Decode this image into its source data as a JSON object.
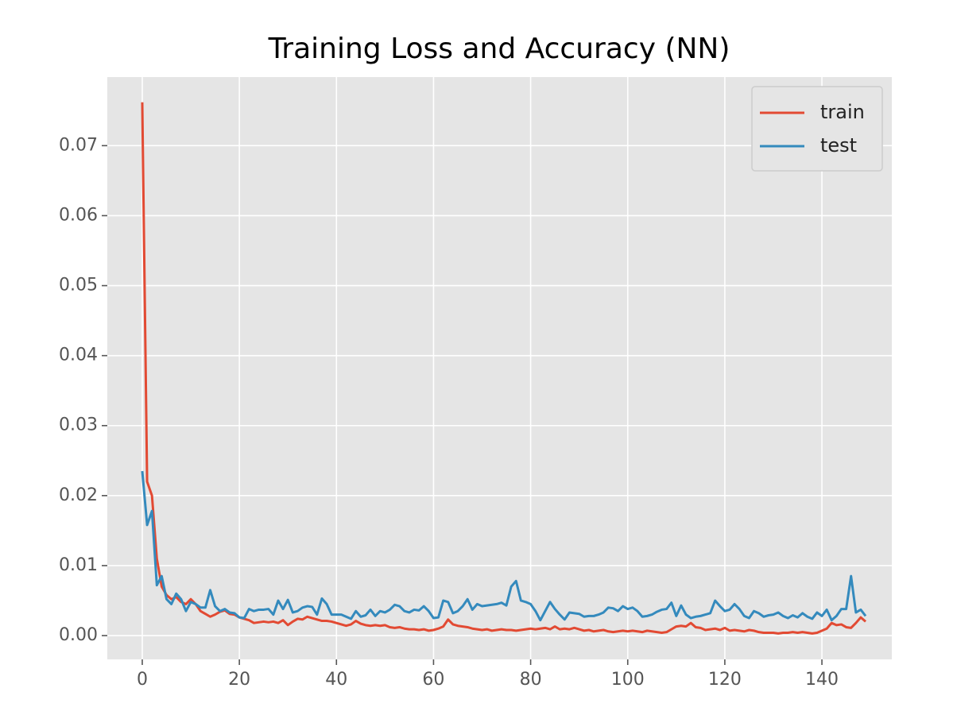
{
  "chart_data": {
    "type": "line",
    "title": "Training Loss and Accuracy (NN)",
    "x": [
      0,
      1,
      2,
      3,
      4,
      5,
      6,
      7,
      8,
      9,
      10,
      11,
      12,
      13,
      14,
      15,
      16,
      17,
      18,
      19,
      20,
      21,
      22,
      23,
      24,
      25,
      26,
      27,
      28,
      29,
      30,
      31,
      32,
      33,
      34,
      35,
      36,
      37,
      38,
      39,
      40,
      41,
      42,
      43,
      44,
      45,
      46,
      47,
      48,
      49,
      50,
      51,
      52,
      53,
      54,
      55,
      56,
      57,
      58,
      59,
      60,
      61,
      62,
      63,
      64,
      65,
      66,
      67,
      68,
      69,
      70,
      71,
      72,
      73,
      74,
      75,
      76,
      77,
      78,
      79,
      80,
      81,
      82,
      83,
      84,
      85,
      86,
      87,
      88,
      89,
      90,
      91,
      92,
      93,
      94,
      95,
      96,
      97,
      98,
      99,
      100,
      101,
      102,
      103,
      104,
      105,
      106,
      107,
      108,
      109,
      110,
      111,
      112,
      113,
      114,
      115,
      116,
      117,
      118,
      119,
      120,
      121,
      122,
      123,
      124,
      125,
      126,
      127,
      128,
      129,
      130,
      131,
      132,
      133,
      134,
      135,
      136,
      137,
      138,
      139,
      140,
      141,
      142,
      143,
      144,
      145,
      146,
      147,
      148,
      149
    ],
    "series": [
      {
        "name": "train",
        "color": "#E24A33",
        "values": [
          0.0762,
          0.022,
          0.02,
          0.011,
          0.007,
          0.0058,
          0.0052,
          0.0055,
          0.0048,
          0.0045,
          0.0052,
          0.0045,
          0.0035,
          0.0031,
          0.0027,
          0.003,
          0.0034,
          0.0036,
          0.0031,
          0.003,
          0.0026,
          0.0024,
          0.0022,
          0.0018,
          0.0019,
          0.002,
          0.0019,
          0.002,
          0.0018,
          0.0022,
          0.0015,
          0.002,
          0.0024,
          0.0023,
          0.0027,
          0.0025,
          0.0023,
          0.0021,
          0.0021,
          0.002,
          0.0018,
          0.0016,
          0.0014,
          0.0016,
          0.0021,
          0.0017,
          0.0015,
          0.0014,
          0.0015,
          0.0014,
          0.0015,
          0.0012,
          0.0011,
          0.0012,
          0.001,
          0.0009,
          0.0009,
          0.0008,
          0.0009,
          0.0007,
          0.0008,
          0.001,
          0.0013,
          0.0023,
          0.0016,
          0.0014,
          0.0013,
          0.0012,
          0.001,
          0.0009,
          0.0008,
          0.0009,
          0.0007,
          0.0008,
          0.0009,
          0.0008,
          0.0008,
          0.0007,
          0.0008,
          0.0009,
          0.001,
          0.0009,
          0.001,
          0.0011,
          0.0009,
          0.0013,
          0.0009,
          0.001,
          0.0009,
          0.0011,
          0.0009,
          0.0007,
          0.0008,
          0.0006,
          0.0007,
          0.0008,
          0.0006,
          0.0005,
          0.0006,
          0.0007,
          0.0006,
          0.0007,
          0.0006,
          0.0005,
          0.0007,
          0.0006,
          0.0005,
          0.0004,
          0.0005,
          0.0009,
          0.0013,
          0.0014,
          0.0013,
          0.0018,
          0.0012,
          0.0011,
          0.0008,
          0.0009,
          0.001,
          0.0008,
          0.0011,
          0.0007,
          0.0008,
          0.0007,
          0.0006,
          0.0008,
          0.0007,
          0.0005,
          0.0004,
          0.0004,
          0.0004,
          0.0003,
          0.0004,
          0.0004,
          0.0005,
          0.0004,
          0.0005,
          0.0004,
          0.0003,
          0.0004,
          0.0007,
          0.001,
          0.0018,
          0.0015,
          0.0016,
          0.0012,
          0.0011,
          0.0018,
          0.0026,
          0.002
        ]
      },
      {
        "name": "test",
        "color": "#348ABD",
        "values": [
          0.0235,
          0.0158,
          0.0178,
          0.0072,
          0.0085,
          0.0052,
          0.0045,
          0.006,
          0.0052,
          0.0035,
          0.0048,
          0.0045,
          0.004,
          0.004,
          0.0065,
          0.0042,
          0.0035,
          0.0038,
          0.0033,
          0.0032,
          0.0026,
          0.0025,
          0.0038,
          0.0035,
          0.0037,
          0.0037,
          0.0038,
          0.003,
          0.005,
          0.0038,
          0.0051,
          0.0033,
          0.0035,
          0.004,
          0.0042,
          0.0041,
          0.003,
          0.0053,
          0.0045,
          0.003,
          0.003,
          0.003,
          0.0027,
          0.0024,
          0.0035,
          0.0027,
          0.0029,
          0.0037,
          0.0028,
          0.0035,
          0.0033,
          0.0037,
          0.0044,
          0.0042,
          0.0035,
          0.0033,
          0.0037,
          0.0036,
          0.0042,
          0.0035,
          0.0025,
          0.0026,
          0.005,
          0.0048,
          0.0032,
          0.0035,
          0.0042,
          0.0052,
          0.0037,
          0.0045,
          0.0042,
          0.0043,
          0.0044,
          0.0045,
          0.0047,
          0.0043,
          0.007,
          0.0078,
          0.005,
          0.0048,
          0.0045,
          0.0035,
          0.0022,
          0.0035,
          0.0048,
          0.0038,
          0.003,
          0.0023,
          0.0033,
          0.0032,
          0.0031,
          0.0027,
          0.0028,
          0.0028,
          0.003,
          0.0033,
          0.004,
          0.0039,
          0.0035,
          0.0042,
          0.0038,
          0.004,
          0.0035,
          0.0027,
          0.0028,
          0.003,
          0.0034,
          0.0037,
          0.0038,
          0.0047,
          0.0028,
          0.0043,
          0.003,
          0.0025,
          0.0027,
          0.0028,
          0.003,
          0.0032,
          0.005,
          0.0042,
          0.0035,
          0.0037,
          0.0045,
          0.0038,
          0.0028,
          0.0025,
          0.0035,
          0.0032,
          0.0027,
          0.0029,
          0.003,
          0.0033,
          0.0028,
          0.0025,
          0.0029,
          0.0026,
          0.0032,
          0.0027,
          0.0024,
          0.0033,
          0.0028,
          0.0037,
          0.0022,
          0.0028,
          0.0038,
          0.0038,
          0.0085,
          0.0033,
          0.0037,
          0.0028
        ]
      }
    ],
    "xlim": [
      -7.2,
      154.4
    ],
    "xticks": [
      0,
      20,
      40,
      60,
      80,
      100,
      120,
      140
    ],
    "ylim": [
      -0.0034,
      0.0798
    ],
    "yticks": [
      {
        "value": 0,
        "label": "0.00"
      },
      {
        "value": 0.01,
        "label": "0.01"
      },
      {
        "value": 0.02,
        "label": "0.02"
      },
      {
        "value": 0.03,
        "label": "0.03"
      },
      {
        "value": 0.04,
        "label": "0.04"
      },
      {
        "value": 0.05,
        "label": "0.05"
      },
      {
        "value": 0.06,
        "label": "0.06"
      },
      {
        "value": 0.07,
        "label": "0.07"
      }
    ],
    "grid": true,
    "legend": "upper right"
  }
}
